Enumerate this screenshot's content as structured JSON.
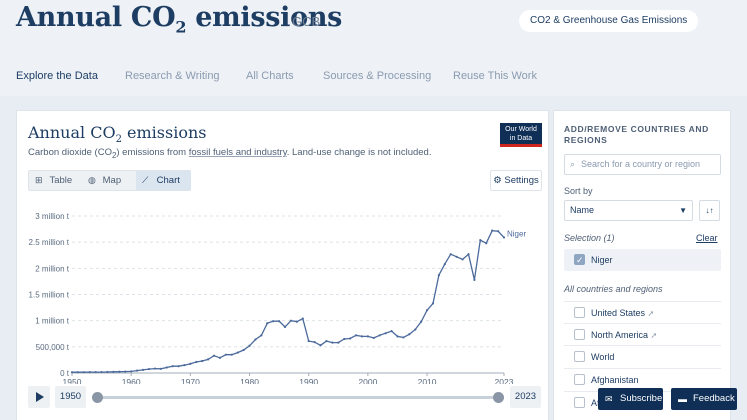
{
  "header": {
    "title_main": "Annual CO",
    "title_sub": "2",
    "title_tail": " emissions",
    "source": "GCB",
    "topic_pill": "CO2 & Greenhouse Gas Emissions"
  },
  "nav": [
    {
      "label": "Explore the Data",
      "active": true
    },
    {
      "label": "Research & Writing",
      "active": false
    },
    {
      "label": "All Charts",
      "active": false
    },
    {
      "label": "Sources & Processing",
      "active": false
    },
    {
      "label": "Reuse This Work",
      "active": false
    }
  ],
  "card": {
    "title_main": "Annual CO",
    "title_sub": "2",
    "title_tail": " emissions",
    "subtitle_a": "Carbon dioxide (CO",
    "subtitle_sub": "2",
    "subtitle_b": ") emissions from ",
    "subtitle_link": "fossil fuels and industry",
    "subtitle_c": ". Land-use change is not included.",
    "logo_line1": "Our World",
    "logo_line2": "in Data"
  },
  "view_tabs": [
    {
      "label": "Table",
      "icon": "table-icon",
      "glyph": "⊞",
      "active": false
    },
    {
      "label": "Map",
      "icon": "globe-icon",
      "glyph": "◍",
      "active": false
    },
    {
      "label": "Chart",
      "icon": "line-chart-icon",
      "glyph": "⟋",
      "active": true
    }
  ],
  "settings_label": "Settings",
  "timeline": {
    "start_year": "1950",
    "end_year": "2023",
    "start_fraction": 0,
    "end_fraction": 1
  },
  "sidebar": {
    "heading": "ADD/REMOVE COUNTRIES AND REGIONS",
    "search_placeholder": "Search for a country or region",
    "sort_label": "Sort by",
    "sort_value": "Name",
    "selection_label": "Selection (1)",
    "clear_label": "Clear",
    "selected": [
      "Niger"
    ],
    "all_label": "All countries and regions",
    "entities": [
      {
        "name": "United States",
        "pinned": true
      },
      {
        "name": "North America",
        "pinned": true
      },
      {
        "name": "World",
        "pinned": false
      },
      {
        "name": "Afghanistan",
        "pinned": false
      },
      {
        "name": "Africa",
        "pinned": false
      }
    ]
  },
  "buttons": {
    "subscribe": "Subscribe",
    "feedback": "Feedback"
  },
  "colors": {
    "series": "#4c6a9c",
    "brand": "#0f2f57",
    "accent_red": "#ce261e"
  },
  "chart_data": {
    "type": "line",
    "ylim": [
      0,
      3000000
    ],
    "xlim": [
      1950,
      2023
    ],
    "y_ticks": [
      {
        "value": 0,
        "label": "0 t"
      },
      {
        "value": 500000,
        "label": "500,000 t"
      },
      {
        "value": 1000000,
        "label": "1 million t"
      },
      {
        "value": 1500000,
        "label": "1.5 million t"
      },
      {
        "value": 2000000,
        "label": "2 million t"
      },
      {
        "value": 2500000,
        "label": "2.5 million t"
      },
      {
        "value": 3000000,
        "label": "3 million t"
      }
    ],
    "x_ticks": [
      1950,
      1960,
      1970,
      1980,
      1990,
      2000,
      2010,
      2023
    ],
    "grid": "horizontal-dashed",
    "series": [
      {
        "name": "Niger",
        "x": [
          1950,
          1951,
          1952,
          1953,
          1954,
          1955,
          1956,
          1957,
          1958,
          1959,
          1960,
          1961,
          1962,
          1963,
          1964,
          1965,
          1966,
          1967,
          1968,
          1969,
          1970,
          1971,
          1972,
          1973,
          1974,
          1975,
          1976,
          1977,
          1978,
          1979,
          1980,
          1981,
          1982,
          1983,
          1984,
          1985,
          1986,
          1987,
          1988,
          1989,
          1990,
          1991,
          1992,
          1993,
          1994,
          1995,
          1996,
          1997,
          1998,
          1999,
          2000,
          2001,
          2002,
          2003,
          2004,
          2005,
          2006,
          2007,
          2008,
          2009,
          2010,
          2011,
          2012,
          2013,
          2014,
          2015,
          2016,
          2017,
          2018,
          2019,
          2020,
          2021,
          2022,
          2023
        ],
        "y": [
          15000,
          15000,
          16000,
          17000,
          18000,
          18000,
          20000,
          22000,
          24000,
          26000,
          30000,
          45000,
          60000,
          75000,
          85000,
          80000,
          105000,
          130000,
          130000,
          150000,
          175000,
          210000,
          230000,
          260000,
          330000,
          290000,
          350000,
          350000,
          390000,
          440000,
          520000,
          640000,
          720000,
          950000,
          990000,
          990000,
          880000,
          1000000,
          980000,
          1040000,
          610000,
          590000,
          530000,
          610000,
          580000,
          580000,
          650000,
          660000,
          720000,
          700000,
          700000,
          670000,
          720000,
          760000,
          800000,
          700000,
          680000,
          740000,
          830000,
          980000,
          1200000,
          1330000,
          1870000,
          2080000,
          2270000,
          2220000,
          2170000,
          2270000,
          1780000,
          2540000,
          2480000,
          2720000,
          2710000,
          2590000
        ]
      }
    ]
  }
}
